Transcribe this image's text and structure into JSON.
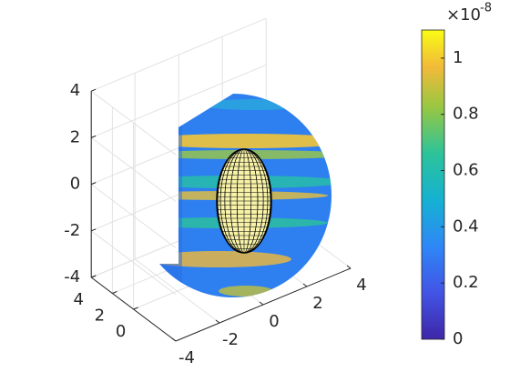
{
  "chart_data": {
    "type": "surface3d",
    "xlim": [
      -4,
      4
    ],
    "xticks": [
      -4,
      -2,
      0,
      2,
      4
    ],
    "ylim": [
      -4,
      4
    ],
    "yticks": [
      0,
      2,
      4
    ],
    "zlim": [
      -4,
      4
    ],
    "zticks": [
      -4,
      -2,
      0,
      2,
      4
    ],
    "grid": true,
    "colorbar": {
      "lim": [
        0,
        1.1
      ],
      "ticks": [
        0,
        0.2,
        0.4,
        0.6,
        0.8,
        1
      ],
      "exponent_base": "×10",
      "exponent": -8
    }
  }
}
